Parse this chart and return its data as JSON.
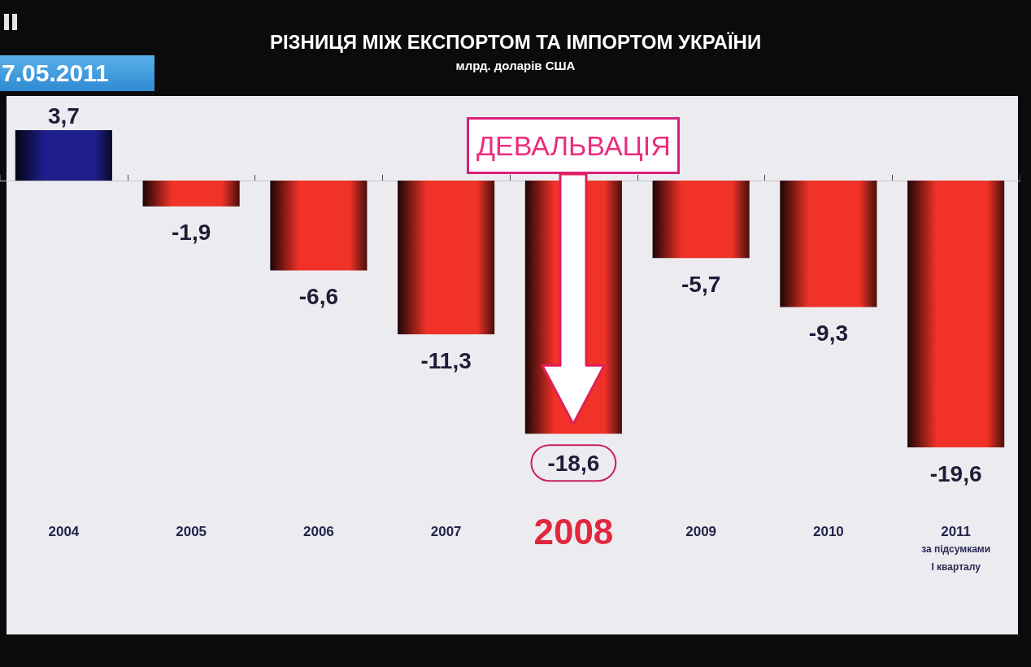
{
  "chart_data": {
    "type": "bar",
    "title": "РІЗНИЦЯ МІЖ ЕКСПОРТОМ ТА ІМПОРТОМ УКРАЇНИ",
    "subtitle": "млрд. доларів США",
    "categories": [
      "2004",
      "2005",
      "2006",
      "2007",
      "2008",
      "2009",
      "2010",
      "2011\nза підсумками\nІ кварталу"
    ],
    "values": [
      3.7,
      -1.9,
      -6.6,
      -11.3,
      -18.6,
      -5.7,
      -9.3,
      -19.6
    ],
    "colors": [
      "#1e1e8c",
      "#f03228",
      "#f03228",
      "#f03228",
      "#f03228",
      "#f03228",
      "#f03228",
      "#f03228"
    ],
    "value_labels": [
      "3,7",
      "-1,9",
      "-6,6",
      "-11,3",
      "-18,6",
      "-5,7",
      "-9,3",
      "-19,6"
    ],
    "annotations": [
      "7.05.2011",
      {
        "text": "ДЕВАЛЬВАЦІЯ",
        "x": "2008",
        "y": 0
      }
    ]
  }
}
